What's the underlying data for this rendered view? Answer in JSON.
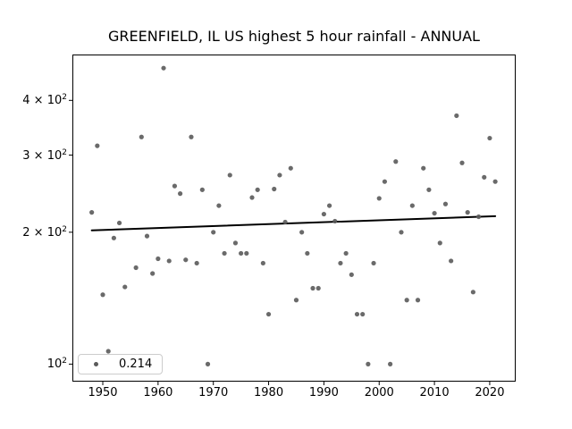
{
  "chart": {
    "title": "GREENFIELD, IL US highest 5 hour rainfall - ANNUAL",
    "legend_label": "0.214"
  },
  "colors": {
    "dot": "#5a5a5a",
    "trend_line": "#000000",
    "frame": "#000000",
    "background": "#ffffff"
  },
  "chart_data": {
    "type": "scatter",
    "title": "GREENFIELD, IL US highest 5 hour rainfall - ANNUAL",
    "xlabel": "",
    "ylabel": "",
    "x_scale": "linear",
    "y_scale": "log",
    "xlim": [
      1944.5,
      2024.7
    ],
    "ylim": [
      91.2,
      509
    ],
    "grid": false,
    "x_ticks": [
      1950,
      1960,
      1970,
      1980,
      1990,
      2000,
      2010,
      2020
    ],
    "y_ticks": [
      {
        "value": 400,
        "base": "4 × 10",
        "exp": "2"
      },
      {
        "value": 300,
        "base": "3 × 10",
        "exp": "2"
      },
      {
        "value": 200,
        "base": "2 × 10",
        "exp": "2"
      },
      {
        "value": 100,
        "base": "10",
        "exp": "2"
      }
    ],
    "legend": {
      "label": "0.214",
      "position": "lower left"
    },
    "series": [
      {
        "name": "annual highest 5 hour rainfall",
        "marker": "dot",
        "color": "#5a5a5a",
        "points": [
          [
            1948,
            222
          ],
          [
            1949,
            315
          ],
          [
            1950,
            144
          ],
          [
            1951,
            107
          ],
          [
            1952,
            194
          ],
          [
            1953,
            210
          ],
          [
            1954,
            150
          ],
          [
            1956,
            166
          ],
          [
            1957,
            330
          ],
          [
            1958,
            196
          ],
          [
            1959,
            161
          ],
          [
            1960,
            174
          ],
          [
            1961,
            474
          ],
          [
            1962,
            172
          ],
          [
            1963,
            255
          ],
          [
            1964,
            245
          ],
          [
            1965,
            173
          ],
          [
            1966,
            330
          ],
          [
            1967,
            170
          ],
          [
            1968,
            250
          ],
          [
            1969,
            100
          ],
          [
            1970,
            200
          ],
          [
            1971,
            230
          ],
          [
            1972,
            179
          ],
          [
            1973,
            270
          ],
          [
            1974,
            189
          ],
          [
            1975,
            179
          ],
          [
            1976,
            179
          ],
          [
            1977,
            240
          ],
          [
            1978,
            250
          ],
          [
            1979,
            170
          ],
          [
            1980,
            130
          ],
          [
            1981,
            251
          ],
          [
            1982,
            270
          ],
          [
            1983,
            211
          ],
          [
            1984,
            280
          ],
          [
            1985,
            140
          ],
          [
            1986,
            200
          ],
          [
            1987,
            179
          ],
          [
            1988,
            149
          ],
          [
            1989,
            149
          ],
          [
            1990,
            220
          ],
          [
            1991,
            230
          ],
          [
            1992,
            212
          ],
          [
            1993,
            170
          ],
          [
            1994,
            179
          ],
          [
            1995,
            160
          ],
          [
            1996,
            130
          ],
          [
            1997,
            130
          ],
          [
            1998,
            100
          ],
          [
            1999,
            170
          ],
          [
            2000,
            239
          ],
          [
            2001,
            261
          ],
          [
            2002,
            100
          ],
          [
            2003,
            290
          ],
          [
            2004,
            200
          ],
          [
            2005,
            140
          ],
          [
            2006,
            230
          ],
          [
            2007,
            140
          ],
          [
            2008,
            280
          ],
          [
            2009,
            250
          ],
          [
            2010,
            221
          ],
          [
            2011,
            189
          ],
          [
            2012,
            232
          ],
          [
            2013,
            172
          ],
          [
            2014,
            369
          ],
          [
            2015,
            288
          ],
          [
            2016,
            222
          ],
          [
            2017,
            146
          ],
          [
            2018,
            217
          ],
          [
            2019,
            267
          ],
          [
            2020,
            328
          ],
          [
            2021,
            261
          ]
        ]
      }
    ],
    "trend_line": {
      "x1": 1948,
      "value1": 202.0,
      "x2": 2021,
      "value2": 217.6,
      "slope_label": "0.214",
      "color": "#000000"
    }
  }
}
